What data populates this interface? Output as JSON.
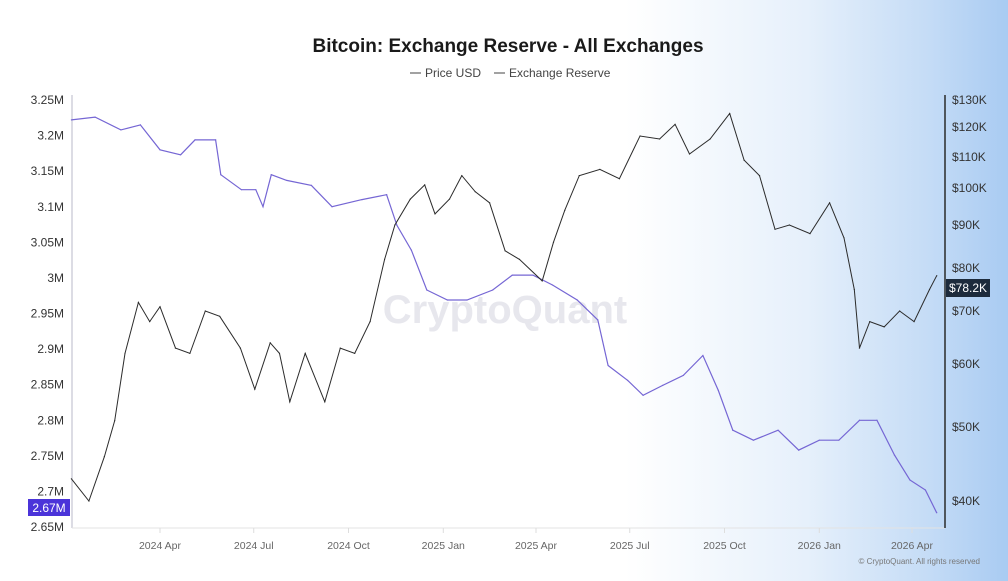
{
  "chart_data": {
    "type": "line",
    "title": "Bitcoin: Exchange Reserve - All Exchanges",
    "watermark": "CryptoQuant",
    "copyright": "© CryptoQuant. All rights reserved",
    "legend": [
      "Price USD",
      "Exchange Reserve"
    ],
    "legend_position": "top-center",
    "grid": false,
    "x_ticks": [
      "2024 Apr",
      "2024 Jul",
      "2024 Oct",
      "2025 Jan",
      "2025 Apr",
      "2025 Jul",
      "2025 Oct",
      "2026 Jan",
      "2026 Apr"
    ],
    "x_tick_dates": [
      "2024-04-01",
      "2024-07-01",
      "2024-10-01",
      "2025-01-01",
      "2025-04-01",
      "2025-07-01",
      "2025-10-01",
      "2026-01-01",
      "2026-04-01"
    ],
    "left_axis": {
      "ticks": [
        "3.25M",
        "3.2M",
        "3.15M",
        "3.1M",
        "3.05M",
        "3M",
        "2.95M",
        "2.9M",
        "2.85M",
        "2.8M",
        "2.75M",
        "2.7M",
        "2.65M"
      ],
      "ylim": [
        2.65,
        3.25
      ],
      "unit": "M BTC"
    },
    "right_axis": {
      "ticks": [
        "$130K",
        "$120K",
        "$110K",
        "$100K",
        "$90K",
        "$80K",
        "$70K",
        "$60K",
        "$50K",
        "$40K"
      ],
      "ylim": [
        38000,
        130000
      ],
      "scale": "log"
    },
    "current_values": {
      "reserve_label": "2.67M",
      "price_label": "$78.2K"
    },
    "colors": {
      "price": "#2b2b2b",
      "reserve": "#7566d4",
      "reserve_badge": "#4b34d9",
      "price_badge": "#1d2b3c"
    },
    "series": [
      {
        "name": "Price USD",
        "axis": "right",
        "points": [
          [
            "2024-01-06",
            43000
          ],
          [
            "2024-01-23",
            40000
          ],
          [
            "2024-02-07",
            46000
          ],
          [
            "2024-02-17",
            51000
          ],
          [
            "2024-02-27",
            62000
          ],
          [
            "2024-03-11",
            72000
          ],
          [
            "2024-03-22",
            68000
          ],
          [
            "2024-04-01",
            71000
          ],
          [
            "2024-04-16",
            63000
          ],
          [
            "2024-04-30",
            62000
          ],
          [
            "2024-05-15",
            70000
          ],
          [
            "2024-05-29",
            69000
          ],
          [
            "2024-06-18",
            63000
          ],
          [
            "2024-07-02",
            56000
          ],
          [
            "2024-07-17",
            64000
          ],
          [
            "2024-07-26",
            62000
          ],
          [
            "2024-08-05",
            54000
          ],
          [
            "2024-08-20",
            62000
          ],
          [
            "2024-09-08",
            54000
          ],
          [
            "2024-09-23",
            63000
          ],
          [
            "2024-10-07",
            62000
          ],
          [
            "2024-10-22",
            68000
          ],
          [
            "2024-11-05",
            82000
          ],
          [
            "2024-11-15",
            90000
          ],
          [
            "2024-11-30",
            97000
          ],
          [
            "2024-12-14",
            101000
          ],
          [
            "2024-12-24",
            93000
          ],
          [
            "2025-01-07",
            97000
          ],
          [
            "2025-01-19",
            104000
          ],
          [
            "2025-02-01",
            99000
          ],
          [
            "2025-02-15",
            96000
          ],
          [
            "2025-03-02",
            84000
          ],
          [
            "2025-03-16",
            82000
          ],
          [
            "2025-04-07",
            77000
          ],
          [
            "2025-04-18",
            86000
          ],
          [
            "2025-04-29",
            94000
          ],
          [
            "2025-05-13",
            104000
          ],
          [
            "2025-06-02",
            106000
          ],
          [
            "2025-06-21",
            103000
          ],
          [
            "2025-07-11",
            117000
          ],
          [
            "2025-07-30",
            116000
          ],
          [
            "2025-08-14",
            121000
          ],
          [
            "2025-08-28",
            111000
          ],
          [
            "2025-09-17",
            116000
          ],
          [
            "2025-10-06",
            125000
          ],
          [
            "2025-10-20",
            109000
          ],
          [
            "2025-11-04",
            104000
          ],
          [
            "2025-11-19",
            89000
          ],
          [
            "2025-12-03",
            90000
          ],
          [
            "2025-12-23",
            88000
          ],
          [
            "2026-01-11",
            96000
          ],
          [
            "2026-01-25",
            87000
          ],
          [
            "2026-02-04",
            75000
          ],
          [
            "2026-02-09",
            63000
          ],
          [
            "2026-02-19",
            68000
          ],
          [
            "2026-03-05",
            67000
          ],
          [
            "2026-03-20",
            70000
          ],
          [
            "2026-04-03",
            68000
          ],
          [
            "2026-04-18",
            75000
          ],
          [
            "2026-04-25",
            78200
          ]
        ]
      },
      {
        "name": "Exchange Reserve",
        "axis": "left",
        "points": [
          [
            "2024-01-06",
            3.222
          ],
          [
            "2024-01-29",
            3.226
          ],
          [
            "2024-02-23",
            3.208
          ],
          [
            "2024-03-13",
            3.215
          ],
          [
            "2024-04-01",
            3.18
          ],
          [
            "2024-04-21",
            3.173
          ],
          [
            "2024-05-05",
            3.194
          ],
          [
            "2024-05-25",
            3.194
          ],
          [
            "2024-05-30",
            3.145
          ],
          [
            "2024-06-19",
            3.124
          ],
          [
            "2024-07-03",
            3.124
          ],
          [
            "2024-07-10",
            3.1
          ],
          [
            "2024-07-18",
            3.145
          ],
          [
            "2024-08-02",
            3.137
          ],
          [
            "2024-08-26",
            3.13
          ],
          [
            "2024-09-15",
            3.1
          ],
          [
            "2024-10-14",
            3.11
          ],
          [
            "2024-11-07",
            3.117
          ],
          [
            "2024-11-17",
            3.074
          ],
          [
            "2024-12-01",
            3.039
          ],
          [
            "2024-12-16",
            2.983
          ],
          [
            "2025-01-05",
            2.969
          ],
          [
            "2025-01-24",
            2.969
          ],
          [
            "2025-02-18",
            2.983
          ],
          [
            "2025-03-09",
            3.004
          ],
          [
            "2025-03-29",
            3.004
          ],
          [
            "2025-04-17",
            2.99
          ],
          [
            "2025-05-11",
            2.969
          ],
          [
            "2025-05-31",
            2.941
          ],
          [
            "2025-06-10",
            2.877
          ],
          [
            "2025-06-29",
            2.856
          ],
          [
            "2025-07-14",
            2.835
          ],
          [
            "2025-08-02",
            2.849
          ],
          [
            "2025-08-22",
            2.863
          ],
          [
            "2025-09-10",
            2.891
          ],
          [
            "2025-09-25",
            2.842
          ],
          [
            "2025-10-09",
            2.786
          ],
          [
            "2025-10-29",
            2.772
          ],
          [
            "2025-11-22",
            2.786
          ],
          [
            "2025-12-12",
            2.758
          ],
          [
            "2026-01-01",
            2.772
          ],
          [
            "2026-01-20",
            2.772
          ],
          [
            "2026-02-09",
            2.8
          ],
          [
            "2026-02-26",
            2.8
          ],
          [
            "2026-03-15",
            2.751
          ],
          [
            "2026-03-30",
            2.716
          ],
          [
            "2026-04-14",
            2.702
          ],
          [
            "2026-04-25",
            2.67
          ]
        ]
      }
    ]
  }
}
